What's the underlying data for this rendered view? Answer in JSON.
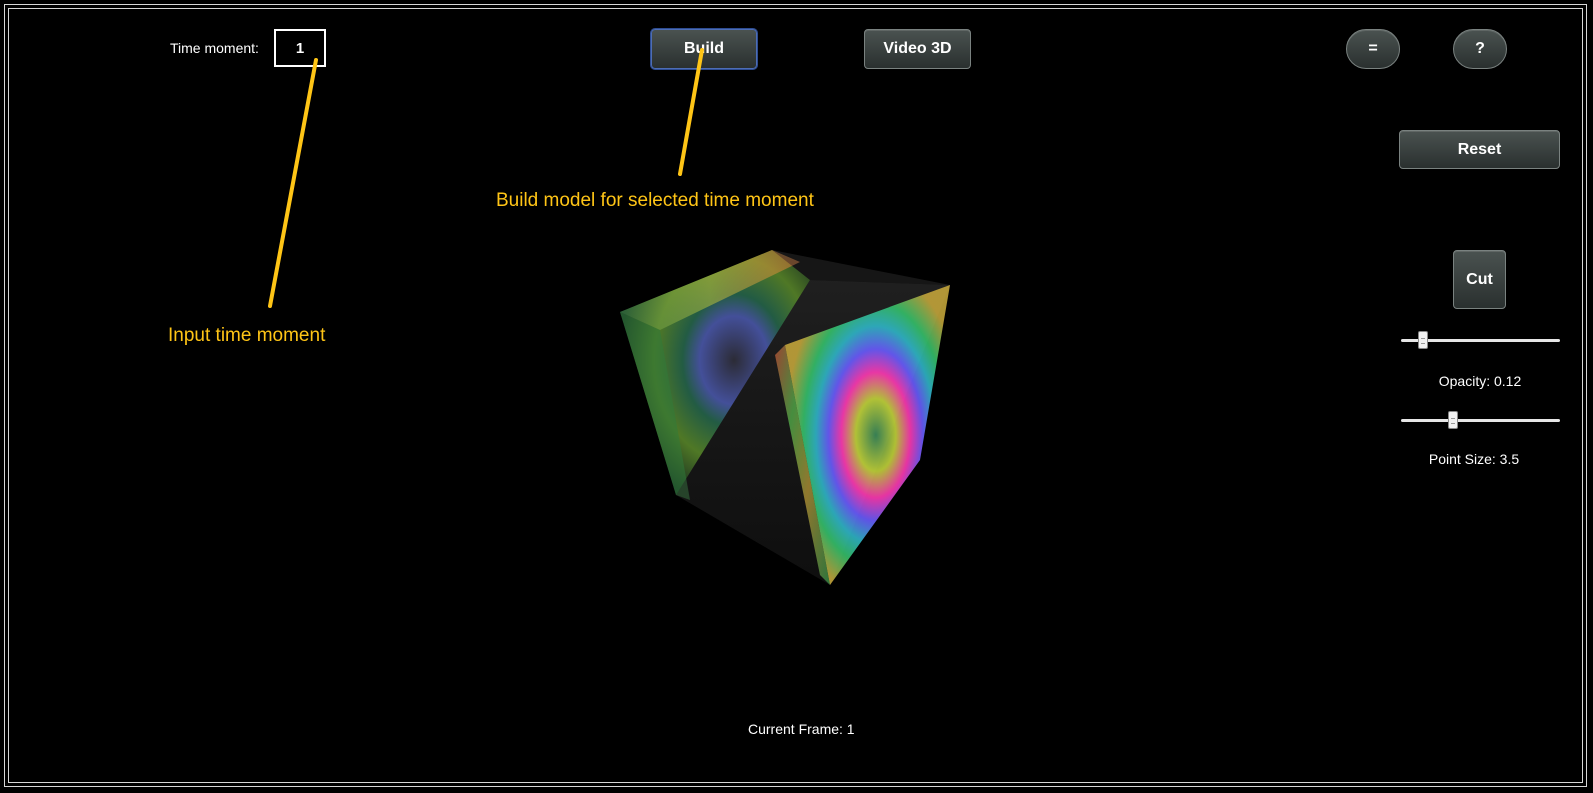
{
  "toolbar": {
    "time_label": "Time moment:",
    "time_value": "1",
    "build_label": "Build",
    "video_label": "Video 3D",
    "menu_label": "=",
    "help_label": "?"
  },
  "side_panel": {
    "reset_label": "Reset",
    "cut_label": "Cut",
    "opacity_label": "Opacity: 0.12",
    "opacity_value": 0.12,
    "point_size_label": "Point Size: 3.5",
    "point_size_value": 3.5
  },
  "annotations": {
    "build_hint": "Build model for selected time moment",
    "input_hint": "Input time moment"
  },
  "status": {
    "current_frame": "Current Frame: 1"
  },
  "colors": {
    "annotation": "#ffc516",
    "background": "#000000",
    "button_border": "#7a8280"
  }
}
